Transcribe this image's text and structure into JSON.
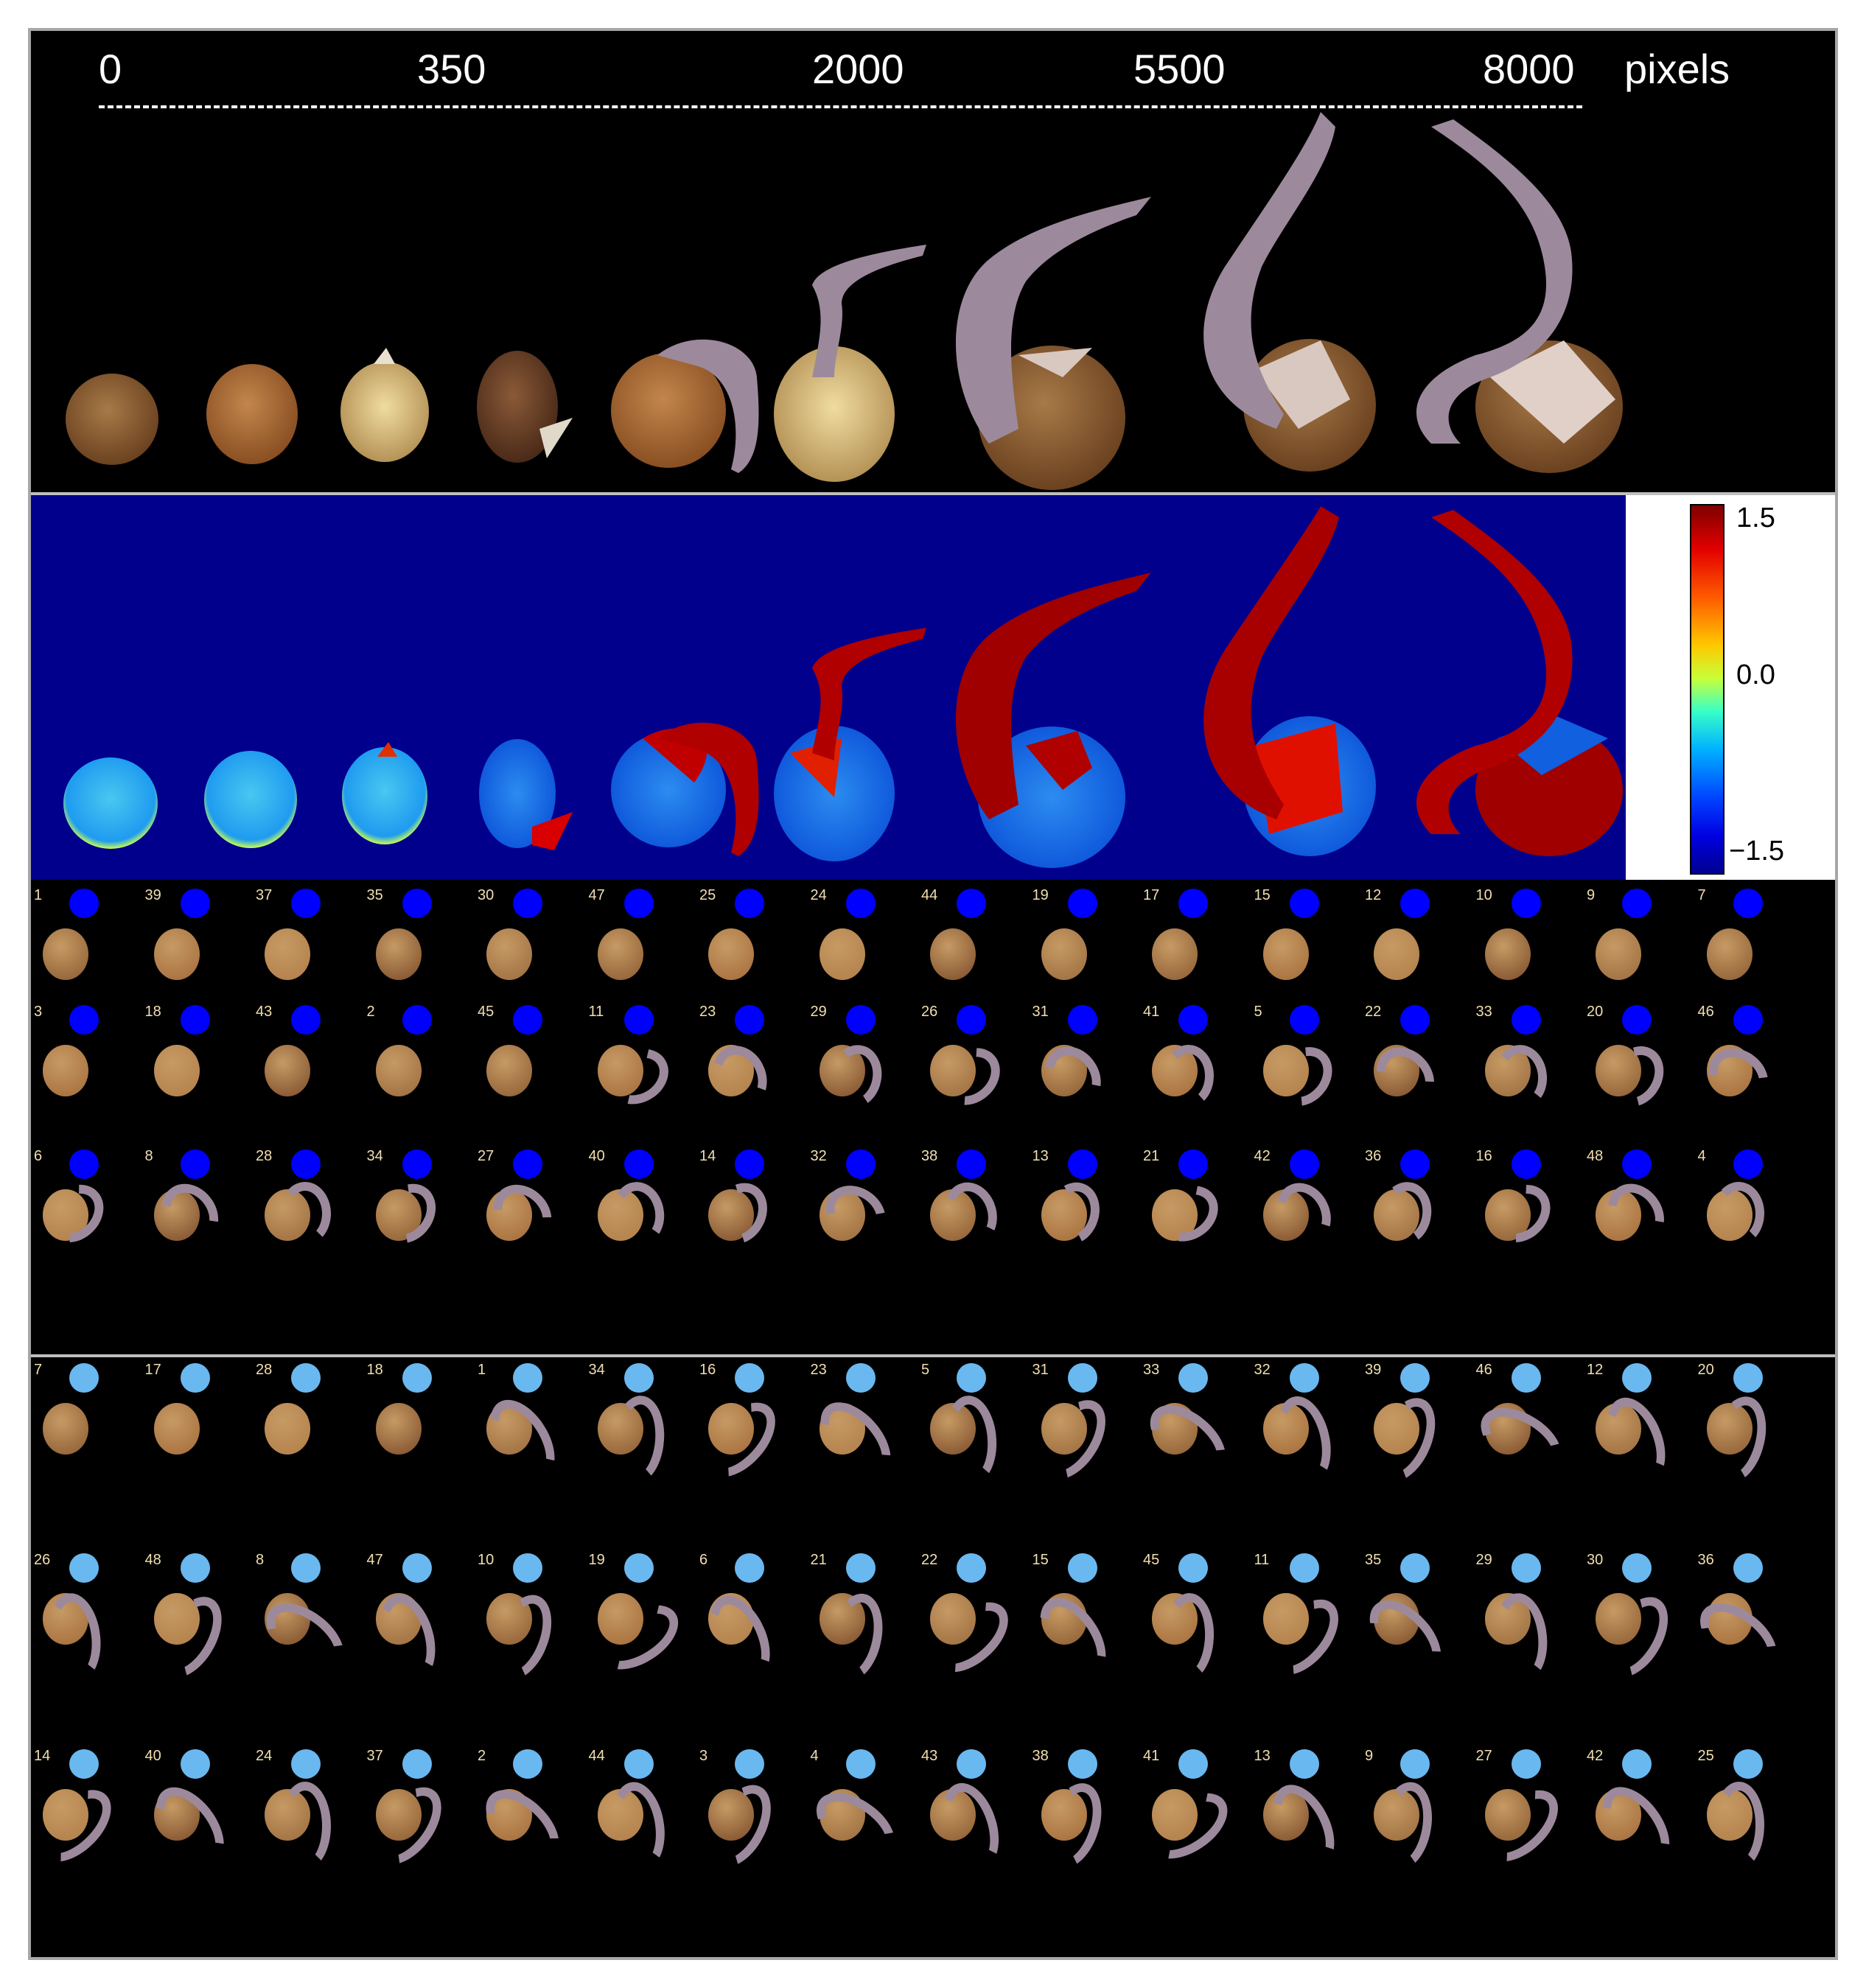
{
  "scale": {
    "ticks": [
      "0",
      "350",
      "2000",
      "5500",
      "8000"
    ],
    "unit": "pixels"
  },
  "colorbar": {
    "max_label": "1.5",
    "mid_label": "0.0",
    "min_label": "−1.5",
    "colors": [
      "#7f0000",
      "#e30000",
      "#ffc800",
      "#38ffc8",
      "#00b4ff",
      "#0000e0",
      "#00008f"
    ]
  },
  "panel_c": {
    "dot_color": "#0000ff",
    "rows": [
      [
        "1",
        "39",
        "37",
        "35",
        "30",
        "47",
        "25",
        "24",
        "44",
        "19",
        "17",
        "15",
        "12",
        "10",
        "9",
        "7"
      ],
      [
        "3",
        "18",
        "43",
        "2",
        "45",
        "11",
        "23",
        "29",
        "26",
        "31",
        "41",
        "5",
        "22",
        "33",
        "20",
        "46"
      ],
      [
        "6",
        "8",
        "28",
        "34",
        "27",
        "40",
        "14",
        "32",
        "38",
        "13",
        "21",
        "42",
        "36",
        "16",
        "48",
        "4"
      ]
    ]
  },
  "panel_d": {
    "dot_color": "#6ab8f0",
    "rows": [
      [
        "7",
        "17",
        "28",
        "18",
        "1",
        "34",
        "16",
        "23",
        "5",
        "31",
        "33",
        "32",
        "39",
        "46",
        "12",
        "20"
      ],
      [
        "26",
        "48",
        "8",
        "47",
        "10",
        "19",
        "6",
        "21",
        "22",
        "15",
        "45",
        "11",
        "35",
        "29",
        "30",
        "36"
      ],
      [
        "14",
        "40",
        "24",
        "37",
        "2",
        "44",
        "3",
        "4",
        "43",
        "38",
        "41",
        "13",
        "9",
        "27",
        "42",
        "25"
      ]
    ]
  },
  "colors": {
    "seed_brown": "#8a5a30",
    "seed_tan": "#c9a468",
    "root_lilac": "#9c8a9c",
    "heatmap_bg": "#00008c"
  }
}
